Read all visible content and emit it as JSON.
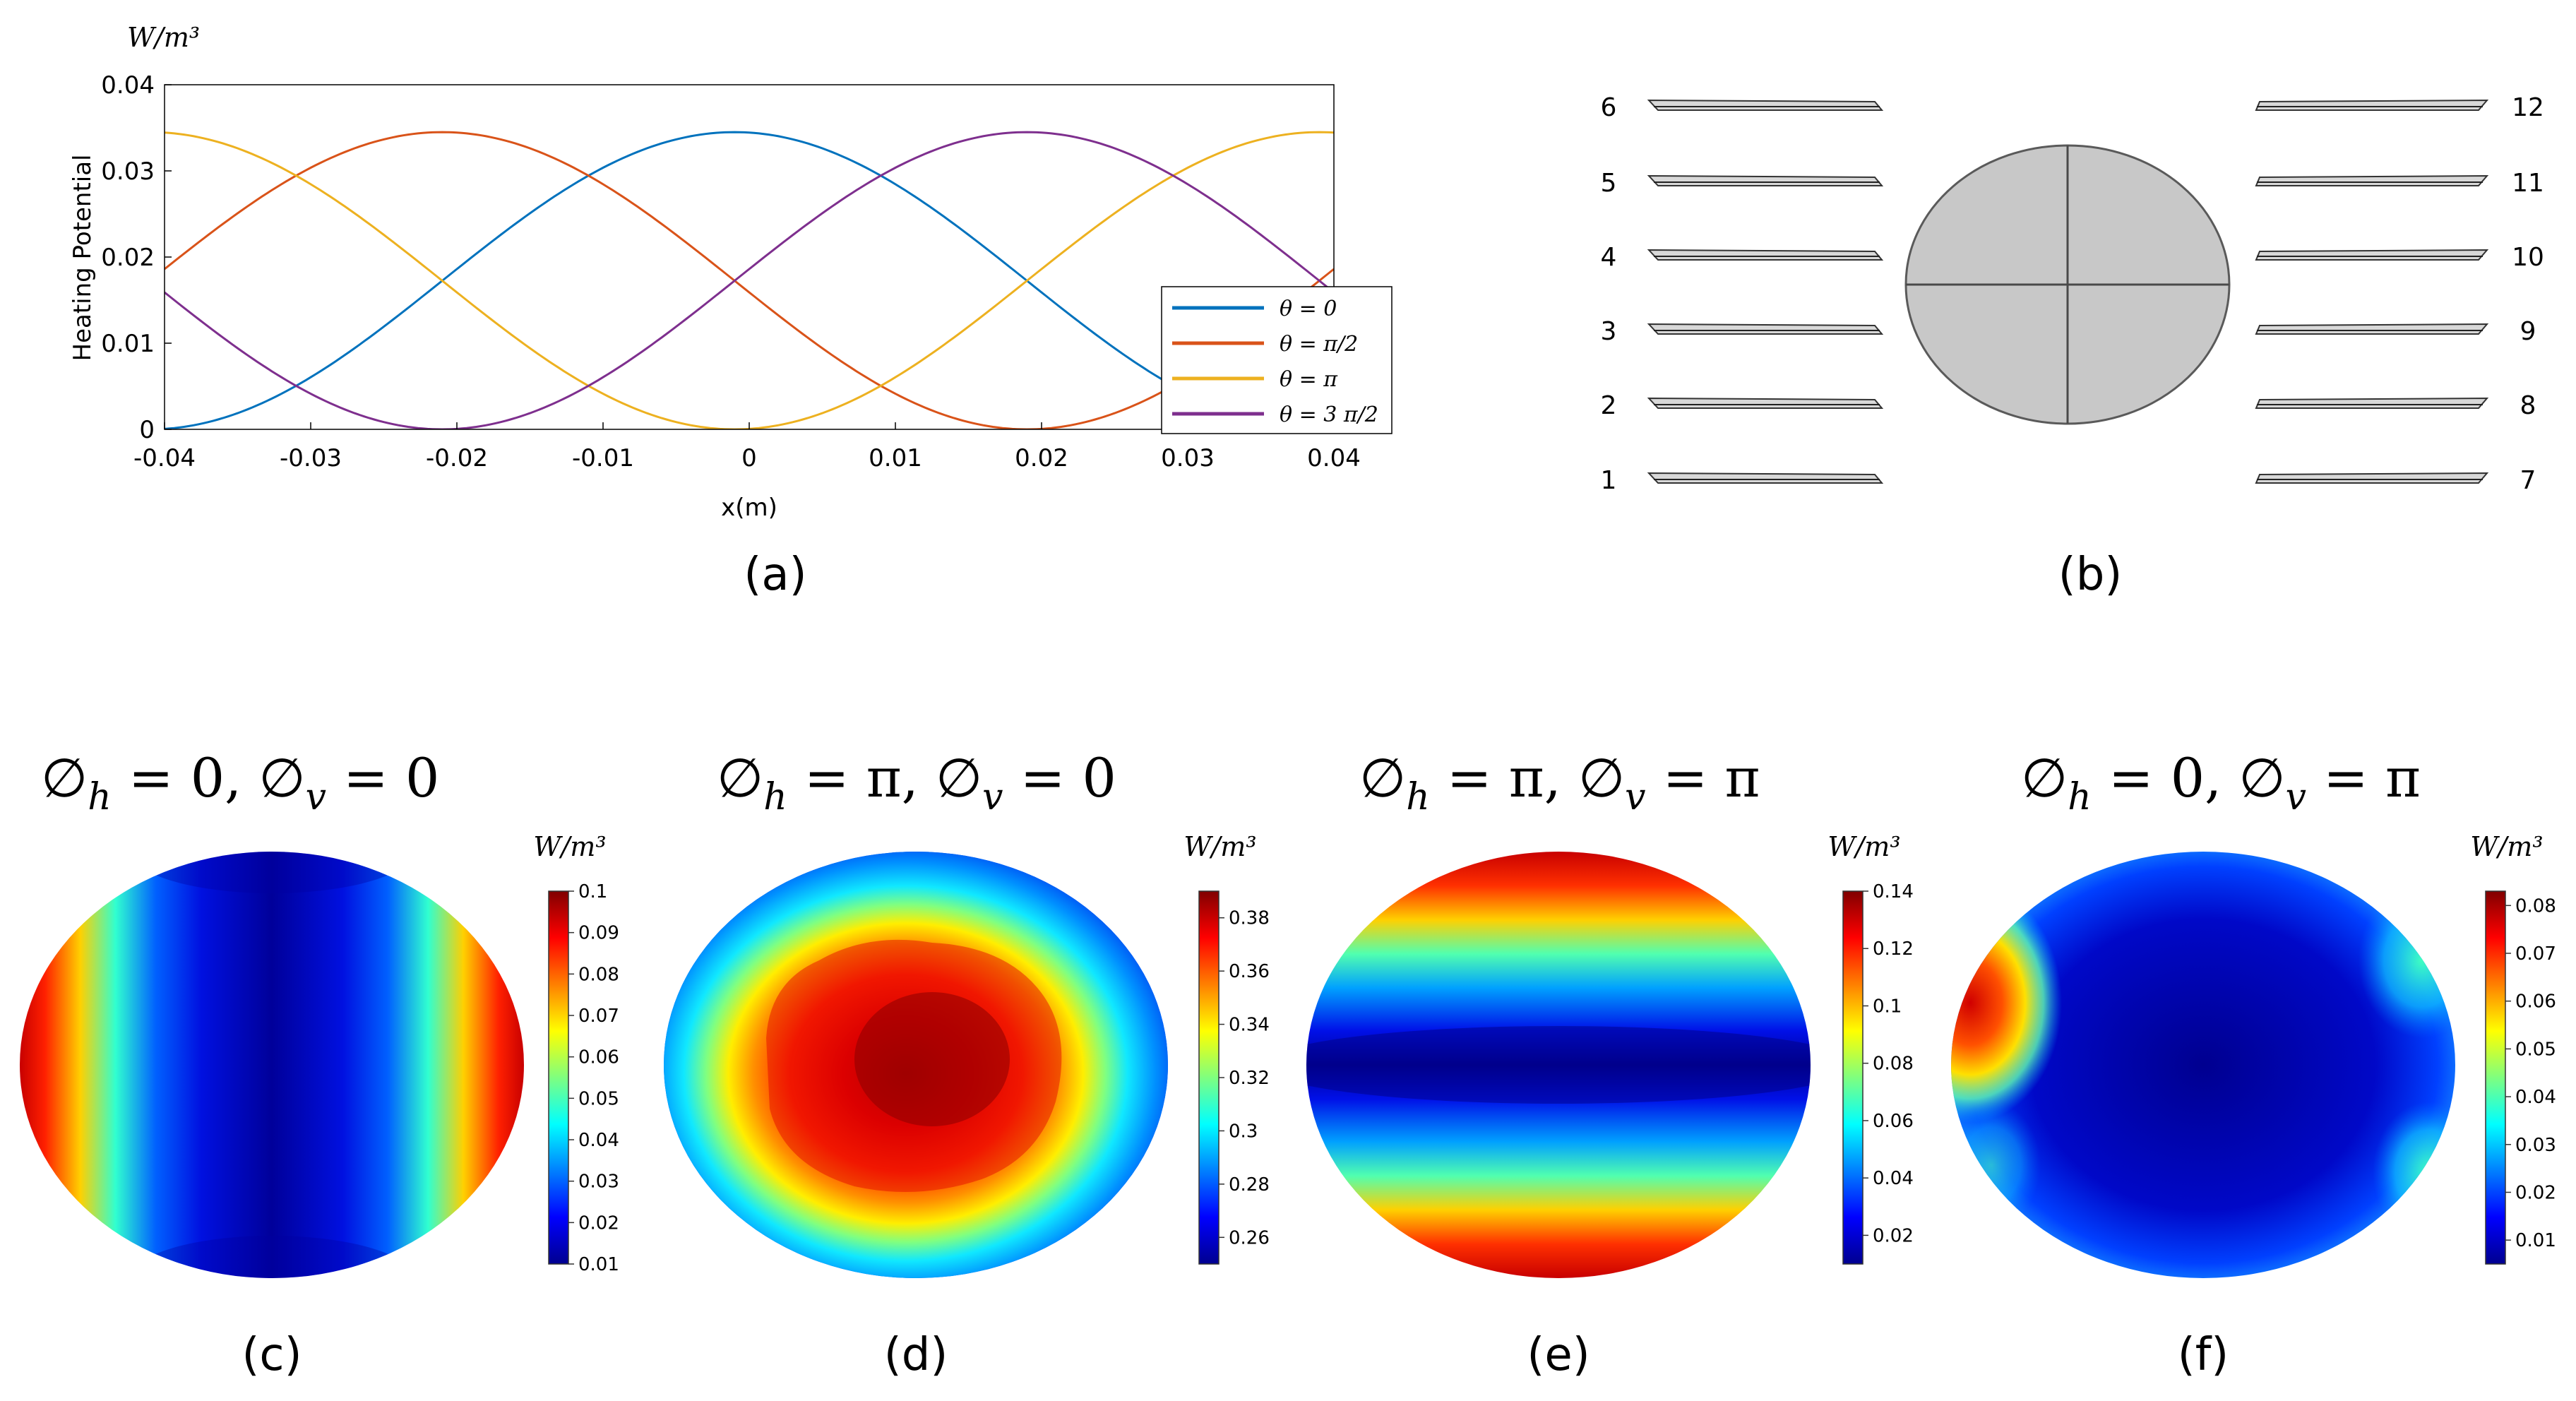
{
  "panels": {
    "a": {
      "caption": "(a)",
      "unit_label": "W/m³",
      "chart_data": {
        "type": "line",
        "ylabel": "Heating Potential",
        "xlabel": "x(m)",
        "xlim": [
          -0.04,
          0.04
        ],
        "ylim": [
          0,
          0.04
        ],
        "xticks": [
          -0.04,
          -0.03,
          -0.02,
          -0.01,
          0,
          0.01,
          0.02,
          0.03,
          0.04
        ],
        "xtick_labels": [
          "-0.04",
          "-0.03",
          "-0.02",
          "-0.01",
          "0",
          "0.01",
          "0.02",
          "0.03",
          "0.04"
        ],
        "yticks": [
          0,
          0.01,
          0.02,
          0.03,
          0.04
        ],
        "ytick_labels": [
          "0",
          "0.01",
          "0.02",
          "0.03",
          "0.04"
        ],
        "legend_position": "bottom-right",
        "series": [
          {
            "name": "θ = 0",
            "color": "#0072BD",
            "amplitude": 0.0345,
            "peak_x": -0.001,
            "period": 0.08
          },
          {
            "name": "θ = π/2",
            "color": "#D95319",
            "amplitude": 0.0345,
            "peak_x": -0.021,
            "period": 0.08
          },
          {
            "name": "θ = π",
            "color": "#EDB120",
            "amplitude": 0.0345,
            "peak_x": 0.039,
            "period": 0.08
          },
          {
            "name": "θ = 3 π/2",
            "color": "#7E2F8E",
            "amplitude": 0.0345,
            "peak_x": 0.019,
            "period": 0.08
          }
        ]
      }
    },
    "b": {
      "caption": "(b)",
      "left_numbers": [
        "6",
        "5",
        "4",
        "3",
        "2",
        "1"
      ],
      "right_numbers": [
        "12",
        "11",
        "10",
        "9",
        "8",
        "7"
      ]
    },
    "maps": [
      {
        "caption": "(c)",
        "title": "∅h = 0, ∅v = 0",
        "h": "0",
        "v": "0",
        "unit": "W/m³",
        "colorbar": {
          "ticks": [
            "0.1",
            "0.09",
            "0.08",
            "0.07",
            "0.06",
            "0.05",
            "0.04",
            "0.03",
            "0.02",
            "0.01"
          ],
          "min": 0.01,
          "max": 0.1
        },
        "pattern": "hot-left-right-edges"
      },
      {
        "caption": "(d)",
        "title": "∅h = π, ∅v = 0",
        "h": "π",
        "v": "0",
        "unit": "W/m³",
        "colorbar": {
          "ticks": [
            "0.38",
            "0.36",
            "0.34",
            "0.32",
            "0.3",
            "0.28",
            "0.26"
          ],
          "min": 0.25,
          "max": 0.39
        },
        "pattern": "hot-center"
      },
      {
        "caption": "(e)",
        "title": "∅h = π, ∅v = π",
        "h": "π",
        "v": "π",
        "unit": "W/m³",
        "colorbar": {
          "ticks": [
            "0.14",
            "0.12",
            "0.1",
            "0.08",
            "0.06",
            "0.04",
            "0.02"
          ],
          "min": 0.01,
          "max": 0.14
        },
        "pattern": "hot-top-bottom-edges"
      },
      {
        "caption": "(f)",
        "title": "∅h = 0, ∅v = π",
        "h": "0",
        "v": "π",
        "unit": "W/m³",
        "colorbar": {
          "ticks": [
            "0.08",
            "0.07",
            "0.06",
            "0.05",
            "0.04",
            "0.03",
            "0.02",
            "0.01"
          ],
          "min": 0.005,
          "max": 0.083
        },
        "pattern": "hot-corners"
      }
    ]
  }
}
